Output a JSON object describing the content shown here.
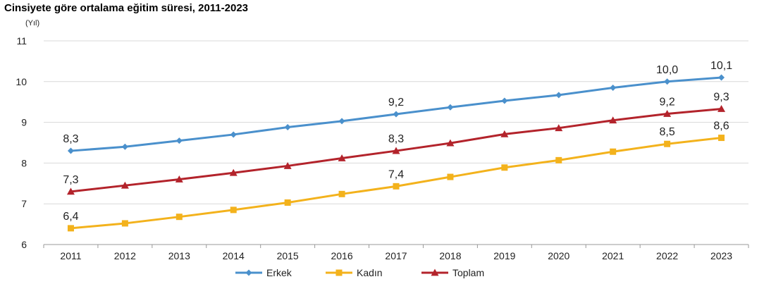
{
  "chart_data": {
    "type": "line",
    "title": "Cinsiyete göre ortalama eğitim süresi, 2011-2023",
    "ylabel": "(Yıl)",
    "xlabel": "",
    "categories": [
      "2011",
      "2012",
      "2013",
      "2014",
      "2015",
      "2016",
      "2017",
      "2018",
      "2019",
      "2020",
      "2021",
      "2022",
      "2023"
    ],
    "ylim": [
      6,
      11
    ],
    "yticks": [
      "6",
      "7",
      "8",
      "9",
      "10",
      "11"
    ],
    "grid": "horizontal",
    "legend_position": "bottom",
    "series": [
      {
        "name": "Erkek",
        "color": "#4a90cc",
        "marker": "diamond",
        "values": [
          8.3,
          8.4,
          8.55,
          8.7,
          8.88,
          9.03,
          9.2,
          9.37,
          9.53,
          9.67,
          9.85,
          10.0,
          10.1
        ],
        "labels": [
          {
            "index": 0,
            "text": "8,3"
          },
          {
            "index": 6,
            "text": "9,2"
          },
          {
            "index": 11,
            "text": "10,0"
          },
          {
            "index": 12,
            "text": "10,1"
          }
        ]
      },
      {
        "name": "Kadın",
        "color": "#f3b21c",
        "marker": "square",
        "values": [
          6.4,
          6.52,
          6.68,
          6.85,
          7.03,
          7.24,
          7.43,
          7.66,
          7.89,
          8.07,
          8.28,
          8.47,
          8.62
        ],
        "labels": [
          {
            "index": 0,
            "text": "6,4"
          },
          {
            "index": 6,
            "text": "7,4"
          },
          {
            "index": 11,
            "text": "8,5"
          },
          {
            "index": 12,
            "text": "8,6"
          }
        ]
      },
      {
        "name": "Toplam",
        "color": "#b3232b",
        "marker": "triangle",
        "values": [
          7.3,
          7.45,
          7.6,
          7.76,
          7.93,
          8.12,
          8.3,
          8.49,
          8.71,
          8.86,
          9.05,
          9.21,
          9.33
        ],
        "labels": [
          {
            "index": 0,
            "text": "7,3"
          },
          {
            "index": 6,
            "text": "8,3"
          },
          {
            "index": 11,
            "text": "9,2"
          },
          {
            "index": 12,
            "text": "9,3"
          }
        ]
      }
    ]
  }
}
